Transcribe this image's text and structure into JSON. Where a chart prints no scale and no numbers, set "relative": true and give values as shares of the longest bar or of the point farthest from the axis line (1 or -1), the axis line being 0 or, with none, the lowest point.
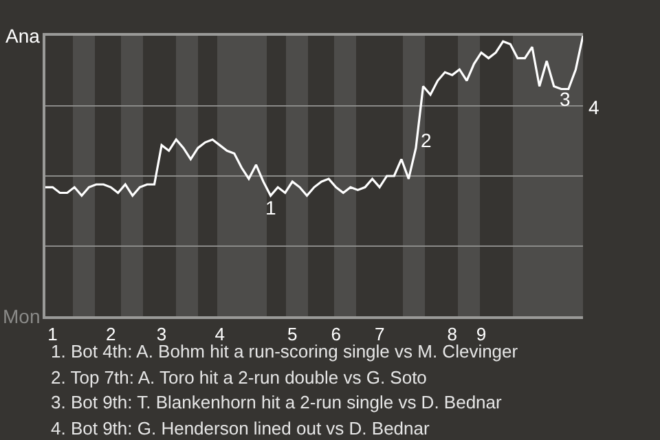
{
  "chart_data": {
    "type": "line",
    "relative": true,
    "categories": [
      null,
      "1",
      null,
      null,
      null,
      null,
      null,
      null,
      null,
      "2",
      null,
      null,
      null,
      null,
      null,
      null,
      "3",
      null,
      null,
      null,
      null,
      null,
      null,
      null,
      "4",
      null,
      null,
      null,
      null,
      null,
      null,
      null,
      null,
      null,
      "5",
      null,
      null,
      null,
      null,
      null,
      "6",
      null,
      null,
      null,
      null,
      null,
      "7",
      null,
      null,
      null,
      null,
      null,
      null,
      null,
      null,
      null,
      "8",
      null,
      null,
      null,
      "9",
      null,
      null,
      null,
      null,
      null,
      null,
      null,
      null,
      null,
      null,
      null,
      null,
      null,
      null
    ],
    "series": [
      {
        "color": "#ffffff",
        "values": [
          0.46,
          0.46,
          0.44,
          0.44,
          0.46,
          0.43,
          0.46,
          0.47,
          0.47,
          0.46,
          0.44,
          0.47,
          0.43,
          0.46,
          0.47,
          0.47,
          0.61,
          0.59,
          0.63,
          0.6,
          0.56,
          0.6,
          0.62,
          0.63,
          0.61,
          0.59,
          0.58,
          0.53,
          0.49,
          0.54,
          0.48,
          0.43,
          0.46,
          0.44,
          0.48,
          0.46,
          0.43,
          0.46,
          0.48,
          0.49,
          0.46,
          0.44,
          0.46,
          0.45,
          0.46,
          0.49,
          0.46,
          0.5,
          0.5,
          0.56,
          0.49,
          0.6,
          0.82,
          0.79,
          0.84,
          0.87,
          0.86,
          0.88,
          0.84,
          0.9,
          0.94,
          0.92,
          0.94,
          0.98,
          0.97,
          0.92,
          0.92,
          0.96,
          0.82,
          0.91,
          0.82,
          0.81,
          0.81,
          0.88,
          1.0
        ]
      }
    ],
    "marker": "none",
    "line_style": "solid",
    "ref_lines": [
      {
        "axis": "y",
        "value": 0.25,
        "color": "#8a8a88"
      },
      {
        "axis": "y",
        "value": 0.5,
        "color": "#8a8a88"
      },
      {
        "axis": "y",
        "value": 0.75,
        "color": "#8a8a88"
      }
    ],
    "annotations": [
      "1",
      "2",
      "3",
      "4",
      "Ana",
      "Mon",
      "1. Bot 4th: A. Bohm hit a run-scoring single vs M. Clevinger",
      "2. Top 7th: A. Toro hit a 2-run double vs G. Soto",
      "3. Bot 9th: T. Blankenhorn hit a 2-run single vs D. Bednar",
      "4. Bot 9th: G. Henderson lined out vs D. Bednar"
    ]
  }
}
